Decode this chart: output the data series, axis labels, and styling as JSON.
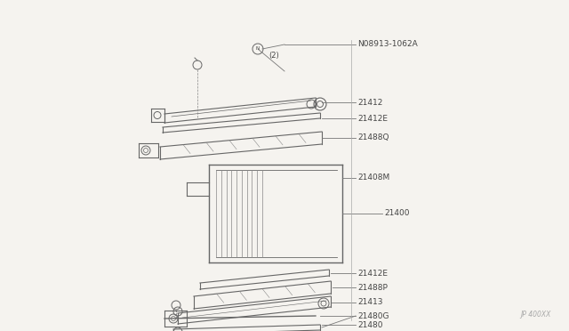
{
  "bg_color": "#f5f3ef",
  "line_color": "#666666",
  "text_color": "#444444",
  "watermark": "JP 400XX",
  "parts": [
    {
      "label": "N08913-1062A",
      "sub": "(2)"
    },
    {
      "label": "21412"
    },
    {
      "label": "21412E"
    },
    {
      "label": "21488Q"
    },
    {
      "label": "21408M"
    },
    {
      "label": "21400"
    },
    {
      "label": "21412E"
    },
    {
      "label": "21488P"
    },
    {
      "label": "21413"
    },
    {
      "label": "21480G"
    },
    {
      "label": "21480"
    }
  ]
}
